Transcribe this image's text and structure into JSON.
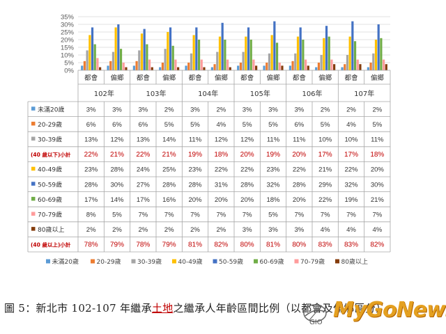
{
  "caption": {
    "prefix": "圖 5：新北市 102-107 年繼承",
    "highlight": "土地",
    "suffix": "之繼承人年齡區間比例（以都會及偏鄉區分）"
  },
  "watermark": {
    "text": "MyGoNews",
    "logo_text": "GIO"
  },
  "chart_data": {
    "type": "bar",
    "yticks": [
      "35%",
      "30%",
      "25%",
      "20%",
      "15%",
      "10%",
      "5%",
      "0%"
    ],
    "ylim": [
      0,
      35
    ],
    "legend_position": "bottom",
    "years": [
      "102年",
      "103年",
      "104年",
      "105年",
      "106年",
      "107年"
    ],
    "areas": [
      "都會",
      "偏鄉"
    ],
    "series": [
      {
        "name": "未滿20歲",
        "color": "#5b9bd5",
        "labels": [
          "3%",
          "3%",
          "3%",
          "2%",
          "3%",
          "2%",
          "3%",
          "3%",
          "3%",
          "2%",
          "2%",
          "2%"
        ],
        "values": [
          3,
          3,
          3,
          2,
          3,
          2,
          3,
          3,
          3,
          2,
          2,
          2
        ]
      },
      {
        "name": "20-29歲",
        "color": "#ed7d31",
        "labels": [
          "6%",
          "6%",
          "6%",
          "5%",
          "5%",
          "4%",
          "5%",
          "5%",
          "6%",
          "5%",
          "4%",
          "5%"
        ],
        "values": [
          6,
          6,
          6,
          5,
          5,
          4,
          5,
          5,
          6,
          5,
          4,
          5
        ]
      },
      {
        "name": "30-39歲",
        "color": "#a5a5a5",
        "labels": [
          "13%",
          "12%",
          "13%",
          "14%",
          "11%",
          "12%",
          "12%",
          "11%",
          "11%",
          "10%",
          "10%",
          "11%"
        ],
        "values": [
          13,
          12,
          13,
          14,
          11,
          12,
          12,
          11,
          11,
          10,
          10,
          11
        ]
      },
      {
        "name": "40-49歲",
        "color": "#ffc000",
        "labels": [
          "23%",
          "28%",
          "24%",
          "25%",
          "23%",
          "22%",
          "22%",
          "23%",
          "22%",
          "21%",
          "22%",
          "20%"
        ],
        "values": [
          23,
          28,
          24,
          25,
          23,
          22,
          22,
          23,
          22,
          21,
          22,
          20
        ]
      },
      {
        "name": "50-59歲",
        "color": "#4472c4",
        "labels": [
          "28%",
          "30%",
          "27%",
          "28%",
          "28%",
          "31%",
          "28%",
          "32%",
          "28%",
          "29%",
          "32%",
          "30%"
        ],
        "values": [
          28,
          30,
          27,
          28,
          28,
          31,
          28,
          32,
          28,
          29,
          32,
          30
        ]
      },
      {
        "name": "60-69歲",
        "color": "#70ad47",
        "labels": [
          "17%",
          "14%",
          "17%",
          "16%",
          "20%",
          "20%",
          "20%",
          "18%",
          "20%",
          "22%",
          "19%",
          "21%"
        ],
        "values": [
          17,
          14,
          17,
          16,
          20,
          20,
          20,
          18,
          20,
          22,
          19,
          21
        ]
      },
      {
        "name": "70-79歲",
        "color": "#ff9c9c",
        "labels": [
          "8%",
          "5%",
          "7%",
          "7%",
          "7%",
          "7%",
          "7%",
          "5%",
          "7%",
          "7%",
          "7%",
          "7%"
        ],
        "values": [
          8,
          5,
          7,
          7,
          7,
          7,
          7,
          5,
          7,
          7,
          7,
          7
        ]
      },
      {
        "name": "80歲以上",
        "color": "#843c0c",
        "labels": [
          "2%",
          "2%",
          "2%",
          "2%",
          "2%",
          "2%",
          "3%",
          "3%",
          "3%",
          "4%",
          "4%",
          "4%"
        ],
        "values": [
          2,
          2,
          2,
          2,
          2,
          2,
          3,
          3,
          3,
          4,
          4,
          4
        ]
      }
    ],
    "subtotals": [
      {
        "name": "(40 歲以下)小計",
        "after_series": 2,
        "values": [
          "22%",
          "21%",
          "22%",
          "21%",
          "19%",
          "18%",
          "20%",
          "19%",
          "20%",
          "17%",
          "17%",
          "18%"
        ]
      },
      {
        "name": "(40 歲以上)小計",
        "after_series": 7,
        "values": [
          "78%",
          "79%",
          "78%",
          "79%",
          "81%",
          "82%",
          "80%",
          "81%",
          "80%",
          "83%",
          "83%",
          "82%"
        ]
      }
    ]
  }
}
